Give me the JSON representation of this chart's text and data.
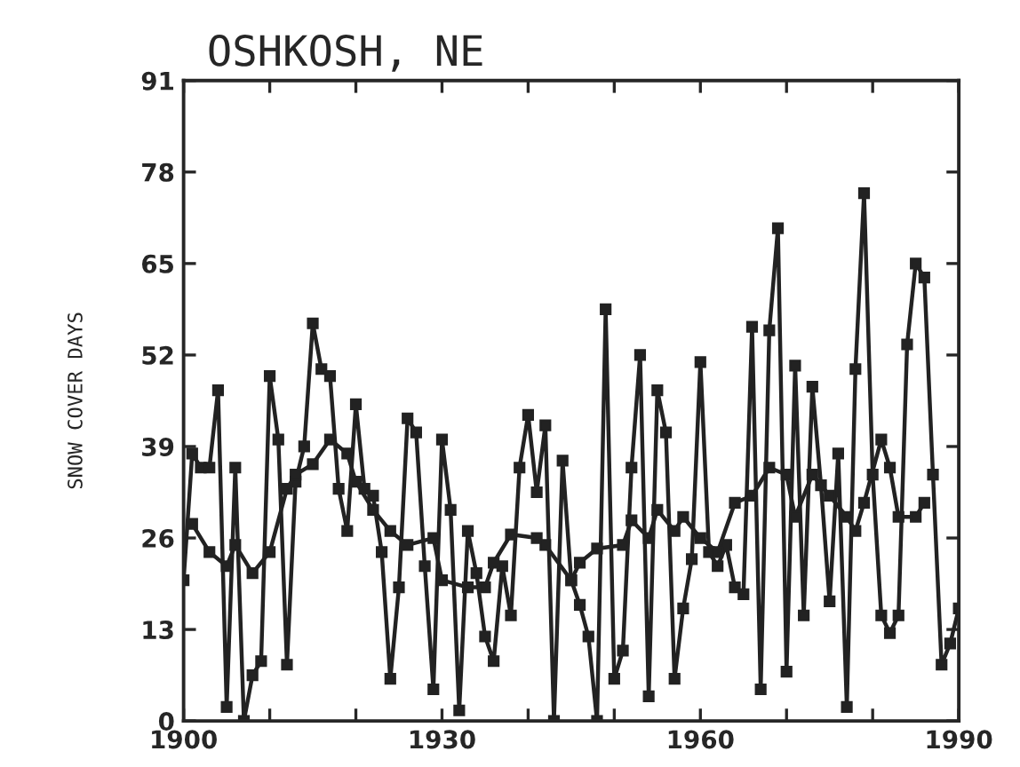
{
  "chart_data": {
    "type": "line",
    "title": "OSHKOSH, NE",
    "ylabel": "SNOW COVER DAYS",
    "xlim": [
      1900,
      1990
    ],
    "xticks": [
      1900,
      {
        "value": 1910,
        "label": null
      },
      {
        "value": 1920,
        "label": null
      },
      1930,
      {
        "value": 1940,
        "label": null
      },
      {
        "value": 1950,
        "label": null
      },
      1960,
      {
        "value": 1970,
        "label": null
      },
      {
        "value": 1980,
        "label": null
      },
      1990
    ],
    "ylim": [
      0,
      91
    ],
    "yticks": [
      0,
      13,
      26,
      39,
      52,
      65,
      78,
      91
    ],
    "grid": false,
    "legend": false,
    "marker": "square",
    "line_style": "solid",
    "series": [
      {
        "color": "#222222",
        "x": [
          1900,
          1901,
          1902,
          1903,
          1904,
          1905,
          1906,
          1907,
          1908,
          1909,
          1910,
          1911,
          1912,
          1913,
          1914,
          1915,
          1916,
          1917,
          1918,
          1919,
          1920,
          1921,
          1922,
          1923,
          1924,
          1925,
          1926,
          1927,
          1928,
          1929,
          1930,
          1931,
          1932,
          1933,
          1934,
          1935,
          1936,
          1937,
          1938,
          1939,
          1940,
          1941,
          1942,
          1943,
          1944,
          1945,
          1946,
          1947,
          1948,
          1949,
          1950,
          1951,
          1952,
          1953,
          1954,
          1955,
          1956,
          1957,
          1958,
          1959,
          1960,
          1961,
          1962,
          1963,
          1964,
          1965,
          1966,
          1967,
          1968,
          1969,
          1970,
          1971,
          1972,
          1973,
          1974,
          1975,
          1976,
          1977,
          1978,
          1979,
          1980,
          1981,
          1982,
          1983,
          1984,
          1985,
          1986,
          1987,
          1988,
          1989,
          1990
        ],
        "values": [
          20,
          38,
          36,
          36,
          47,
          2,
          36,
          0,
          6.5,
          8.5,
          49,
          40,
          8,
          34,
          39,
          56.5,
          50,
          49,
          33,
          27,
          45,
          33,
          32,
          24,
          6,
          19,
          43,
          41,
          22,
          4.5,
          40,
          30,
          1.5,
          27,
          21,
          12,
          8.5,
          22,
          15,
          36,
          43.5,
          32.5,
          42,
          0,
          37,
          20,
          16.5,
          12,
          0,
          58.5,
          6,
          10,
          36,
          52,
          3.5,
          47,
          41,
          6,
          16,
          23,
          51,
          24,
          22,
          25,
          19,
          18,
          56,
          4.5,
          55.5,
          70,
          7,
          50.5,
          15,
          47.5,
          33.5,
          17,
          38,
          2,
          50,
          75,
          35,
          15,
          12.5,
          15,
          53.5,
          65,
          63,
          35,
          8,
          11,
          16
        ]
      },
      {
        "color": "#222222",
        "x": [
          1901,
          1903,
          1905,
          1906,
          1908,
          1910,
          1912,
          1913,
          1915,
          1917,
          1919,
          1920,
          1922,
          1924,
          1926,
          1929,
          1930,
          1933,
          1935,
          1936,
          1938,
          1941,
          1942,
          1945,
          1946,
          1948,
          1951,
          1952,
          1954,
          1955,
          1957,
          1958,
          1960,
          1962,
          1964,
          1966,
          1968,
          1970,
          1971,
          1973,
          1975,
          1977,
          1978,
          1979,
          1981,
          1982,
          1983,
          1985,
          1986
        ],
        "values": [
          28,
          24,
          22,
          25,
          21,
          24,
          33,
          35,
          36.5,
          40,
          38,
          34,
          30,
          27,
          25,
          26,
          20,
          19,
          19,
          22.5,
          26.5,
          26,
          25,
          20,
          22.5,
          24.5,
          25,
          28.5,
          26,
          30,
          27,
          29,
          26,
          24,
          31,
          32,
          36,
          35,
          29,
          35,
          32,
          29,
          27,
          31,
          40,
          36,
          29,
          29,
          31
        ]
      }
    ]
  }
}
